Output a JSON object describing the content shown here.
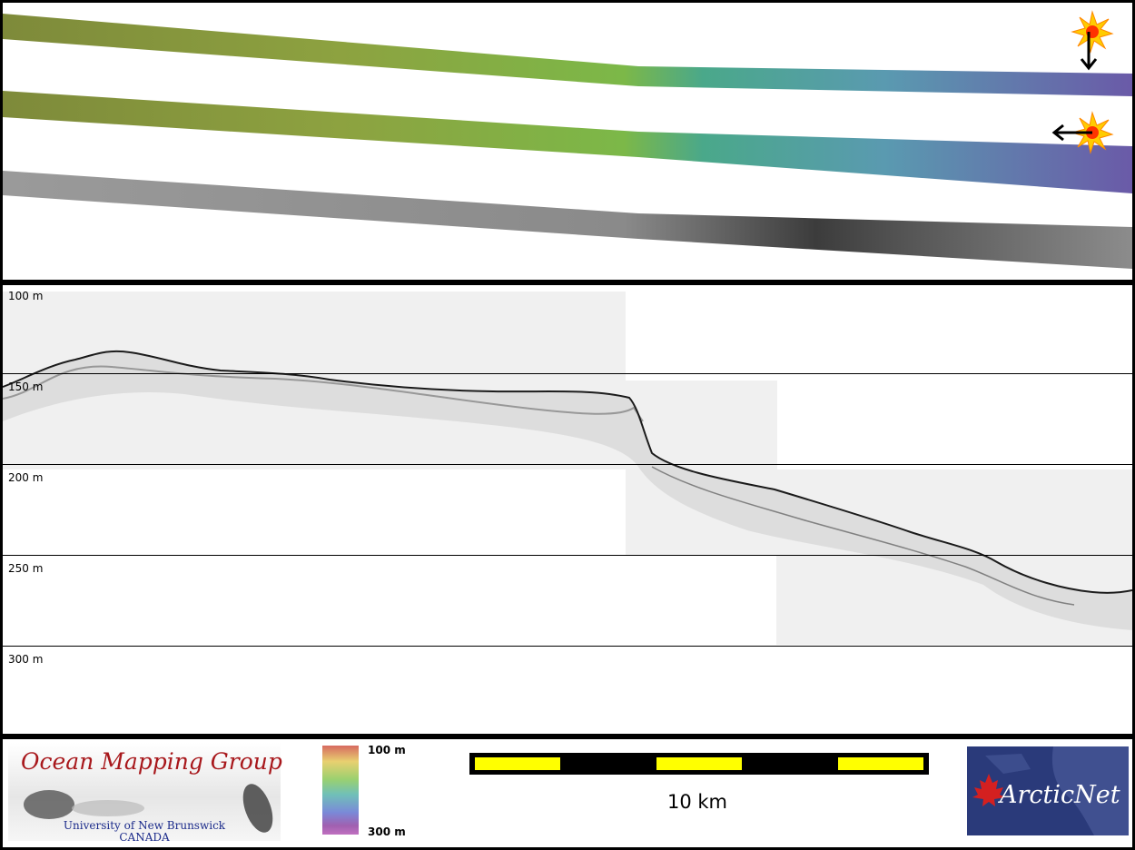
{
  "profile": {
    "depth_labels": [
      "100 m",
      "150 m",
      "200 m",
      "250 m",
      "300 m"
    ]
  },
  "footer": {
    "omg_logo": {
      "title": "Ocean Mapping Group",
      "line1": "University of New Brunswick",
      "line2": "CANADA"
    },
    "colorbar": {
      "top_label": "100 m",
      "bottom_label": "300 m"
    },
    "scale_bar": {
      "label": "10 km"
    },
    "arcticnet_logo": {
      "text": "ArcticNet"
    }
  },
  "colors": {
    "scale_yellow": "#ffff00",
    "omg_red": "#a8181c",
    "arcticnet_blue": "#2a3a7a"
  }
}
